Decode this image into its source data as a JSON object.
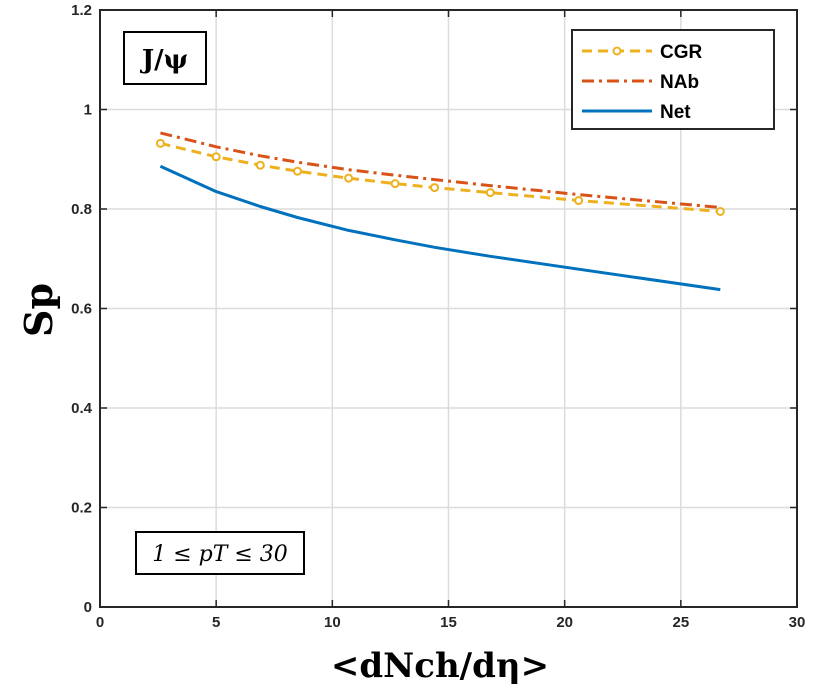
{
  "chart_data": {
    "type": "line",
    "title": "",
    "xlabel": "<dNch/dη>",
    "ylabel": "Sp",
    "xlim": [
      0,
      30
    ],
    "ylim": [
      0,
      1.2
    ],
    "xticks": [
      0,
      5,
      10,
      15,
      20,
      25,
      30
    ],
    "yticks": [
      0,
      0.2,
      0.4,
      0.6,
      0.8,
      1,
      1.2
    ],
    "xtick_labels": [
      "0",
      "5",
      "10",
      "15",
      "20",
      "25",
      "30"
    ],
    "ytick_labels": [
      "0",
      "0.2",
      "0.4",
      "0.6",
      "0.8",
      "1",
      "1.2"
    ],
    "grid": true,
    "legend_position": "top-right",
    "annotations": {
      "particle": "J/ψ",
      "pt_range": "1 ≤ pT ≤ 30"
    },
    "series": [
      {
        "name": "CGR",
        "color": "#EDB120",
        "style": "dashed-circles",
        "x": [
          2.6,
          5.0,
          6.9,
          8.5,
          10.7,
          12.7,
          14.4,
          16.8,
          20.6,
          26.7
        ],
        "y": [
          0.932,
          0.905,
          0.888,
          0.876,
          0.862,
          0.851,
          0.843,
          0.833,
          0.817,
          0.795
        ]
      },
      {
        "name": "NAb",
        "color": "#D95319",
        "style": "dashdot",
        "x": [
          2.6,
          5.0,
          6.9,
          8.5,
          10.7,
          12.7,
          14.4,
          16.8,
          20.6,
          26.7
        ],
        "y": [
          0.953,
          0.925,
          0.907,
          0.894,
          0.879,
          0.868,
          0.859,
          0.847,
          0.829,
          0.803
        ]
      },
      {
        "name": "Net",
        "color": "#0072BD",
        "style": "solid",
        "x": [
          2.6,
          5.0,
          6.9,
          8.5,
          10.7,
          12.7,
          14.4,
          16.8,
          20.6,
          26.7
        ],
        "y": [
          0.886,
          0.835,
          0.805,
          0.783,
          0.757,
          0.738,
          0.723,
          0.705,
          0.679,
          0.638
        ]
      }
    ]
  }
}
